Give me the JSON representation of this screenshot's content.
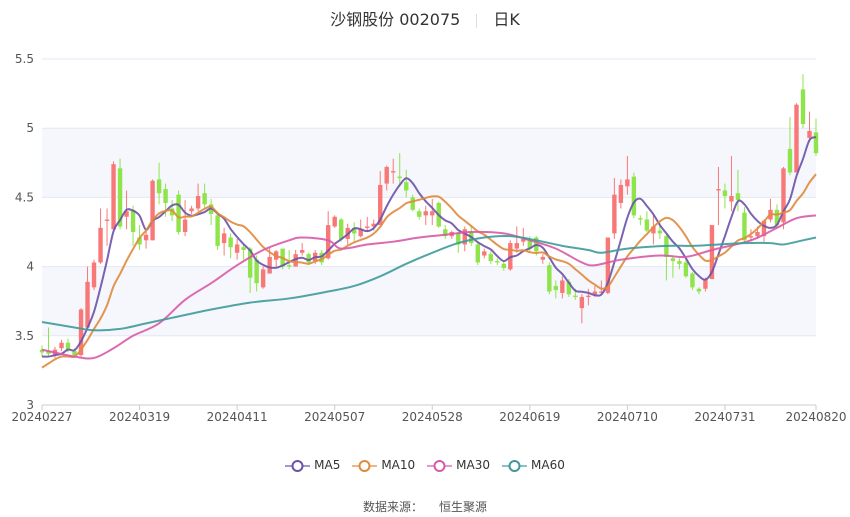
{
  "title": {
    "name": "沙钢股份 002075",
    "period": "日K"
  },
  "source": {
    "label": "数据来源：",
    "value": "恒生聚源"
  },
  "colors": {
    "up": "#f87878",
    "down": "#8ee44a",
    "MA5": "#6b52a8",
    "MA10": "#e08a3c",
    "MA30": "#d85aa6",
    "MA60": "#3e9a9a",
    "grid": "#e3e7f0",
    "band": "#f5f7fc"
  },
  "chart_data": {
    "type": "candlestick",
    "title": "沙钢股份 002075",
    "ylim": [
      3,
      5.5
    ],
    "yticks": [
      "3",
      "3.5",
      "4",
      "4.5",
      "5",
      "5.5"
    ],
    "xticks": [
      "20240227",
      "20240319",
      "20240411",
      "20240507",
      "20240528",
      "20240619",
      "20240710",
      "20240731",
      "20240820"
    ],
    "grid": true,
    "legend_placement": "bottom",
    "ohlc_format": "open, close, low, high",
    "dates": [
      "20240227",
      "20240228",
      "20240229",
      "20240301",
      "20240304",
      "20240305",
      "20240306",
      "20240307",
      "20240308",
      "20240311",
      "20240312",
      "20240313",
      "20240314",
      "20240315",
      "20240318",
      "20240319",
      "20240320",
      "20240321",
      "20240322",
      "20240325",
      "20240326",
      "20240327",
      "20240328",
      "20240329",
      "20240401",
      "20240402",
      "20240403",
      "20240408",
      "20240409",
      "20240410",
      "20240411",
      "20240412",
      "20240415",
      "20240416",
      "20240417",
      "20240418",
      "20240419",
      "20240422",
      "20240423",
      "20240424",
      "20240425",
      "20240426",
      "20240429",
      "20240430",
      "20240506",
      "20240507",
      "20240508",
      "20240509",
      "20240510",
      "20240513",
      "20240514",
      "20240515",
      "20240516",
      "20240517",
      "20240520",
      "20240521",
      "20240522",
      "20240523",
      "20240524",
      "20240527",
      "20240528",
      "20240529",
      "20240530",
      "20240531",
      "20240603",
      "20240604",
      "20240605",
      "20240606",
      "20240607",
      "20240611",
      "20240612",
      "20240613",
      "20240614",
      "20240617",
      "20240618",
      "20240619",
      "20240620",
      "20240621",
      "20240624",
      "20240625",
      "20240626",
      "20240627",
      "20240628",
      "20240701",
      "20240702",
      "20240703",
      "20240704",
      "20240705",
      "20240708",
      "20240709",
      "20240710",
      "20240711",
      "20240712",
      "20240715",
      "20240716",
      "20240717",
      "20240718",
      "20240719",
      "20240722",
      "20240723",
      "20240724",
      "20240725",
      "20240726",
      "20240729",
      "20240730",
      "20240731",
      "20240801",
      "20240802",
      "20240805",
      "20240806",
      "20240807",
      "20240808",
      "20240809",
      "20240812",
      "20240813",
      "20240814",
      "20240815",
      "20240816",
      "20240819",
      "20240820"
    ],
    "ohlc": [
      [
        3.4,
        3.38,
        3.35,
        3.43
      ],
      [
        3.39,
        3.37,
        3.35,
        3.56
      ],
      [
        3.36,
        3.4,
        3.34,
        3.42
      ],
      [
        3.41,
        3.45,
        3.39,
        3.47
      ],
      [
        3.45,
        3.4,
        3.38,
        3.48
      ],
      [
        3.39,
        3.36,
        3.34,
        3.41
      ],
      [
        3.36,
        3.69,
        3.35,
        3.7
      ],
      [
        3.56,
        3.89,
        3.56,
        4.0
      ],
      [
        3.85,
        4.03,
        3.83,
        4.05
      ],
      [
        4.03,
        4.28,
        4.02,
        4.42
      ],
      [
        4.33,
        4.34,
        4.15,
        4.42
      ],
      [
        4.27,
        4.74,
        4.27,
        4.76
      ],
      [
        4.71,
        4.29,
        4.27,
        4.78
      ],
      [
        4.36,
        4.4,
        4.27,
        4.55
      ],
      [
        4.41,
        4.25,
        4.15,
        4.44
      ],
      [
        4.21,
        4.16,
        4.12,
        4.3
      ],
      [
        4.19,
        4.23,
        4.13,
        4.26
      ],
      [
        4.19,
        4.62,
        4.19,
        4.63
      ],
      [
        4.63,
        4.53,
        4.45,
        4.75
      ],
      [
        4.56,
        4.46,
        4.36,
        4.6
      ],
      [
        4.42,
        4.37,
        4.33,
        4.48
      ],
      [
        4.52,
        4.25,
        4.23,
        4.55
      ],
      [
        4.25,
        4.34,
        4.22,
        4.48
      ],
      [
        4.4,
        4.42,
        4.38,
        4.44
      ],
      [
        4.42,
        4.51,
        4.4,
        4.6
      ],
      [
        4.53,
        4.45,
        4.42,
        4.6
      ],
      [
        4.45,
        4.38,
        4.3,
        4.49
      ],
      [
        4.37,
        4.15,
        4.12,
        4.4
      ],
      [
        4.17,
        4.24,
        4.08,
        4.28
      ],
      [
        4.21,
        4.14,
        4.06,
        4.24
      ],
      [
        4.1,
        4.16,
        4.05,
        4.2
      ],
      [
        4.14,
        4.12,
        4.05,
        4.16
      ],
      [
        4.13,
        3.92,
        3.81,
        4.14
      ],
      [
        4.05,
        3.88,
        3.82,
        4.08
      ],
      [
        3.85,
        3.98,
        3.84,
        4.0
      ],
      [
        3.95,
        4.07,
        3.95,
        4.14
      ],
      [
        4.05,
        4.11,
        4.0,
        4.12
      ],
      [
        4.13,
        4.0,
        3.98,
        4.13
      ],
      [
        4.01,
        4.0,
        3.98,
        4.12
      ],
      [
        4.0,
        4.09,
        4.0,
        4.12
      ],
      [
        4.1,
        4.12,
        4.08,
        4.17
      ],
      [
        4.09,
        4.03,
        4.01,
        4.1
      ],
      [
        4.04,
        4.1,
        4.02,
        4.12
      ],
      [
        4.1,
        4.03,
        4.01,
        4.12
      ],
      [
        4.06,
        4.3,
        4.05,
        4.4
      ],
      [
        4.29,
        4.36,
        4.28,
        4.37
      ],
      [
        4.34,
        4.2,
        4.18,
        4.35
      ],
      [
        4.2,
        4.28,
        4.16,
        4.31
      ],
      [
        4.28,
        4.24,
        4.18,
        4.32
      ],
      [
        4.22,
        4.27,
        4.21,
        4.34
      ],
      [
        4.28,
        4.29,
        4.25,
        4.36
      ],
      [
        4.29,
        4.31,
        4.26,
        4.34
      ],
      [
        4.3,
        4.59,
        4.3,
        4.69
      ],
      [
        4.6,
        4.72,
        4.55,
        4.73
      ],
      [
        4.68,
        4.69,
        4.6,
        4.78
      ],
      [
        4.65,
        4.64,
        4.58,
        4.82
      ],
      [
        4.61,
        4.55,
        4.5,
        4.7
      ],
      [
        4.5,
        4.41,
        4.4,
        4.52
      ],
      [
        4.4,
        4.36,
        4.34,
        4.42
      ],
      [
        4.37,
        4.4,
        4.3,
        4.44
      ],
      [
        4.37,
        4.4,
        4.3,
        4.49
      ],
      [
        4.46,
        4.29,
        4.28,
        4.47
      ],
      [
        4.27,
        4.22,
        4.2,
        4.3
      ],
      [
        4.22,
        4.25,
        4.2,
        4.26
      ],
      [
        4.24,
        4.16,
        4.1,
        4.25
      ],
      [
        4.16,
        4.27,
        4.11,
        4.29
      ],
      [
        4.25,
        4.17,
        4.15,
        4.3
      ],
      [
        4.16,
        4.03,
        4.01,
        4.17
      ],
      [
        4.08,
        4.11,
        4.06,
        4.13
      ],
      [
        4.09,
        4.04,
        4.02,
        4.11
      ],
      [
        4.04,
        4.03,
        4.01,
        4.06
      ],
      [
        4.02,
        3.99,
        3.97,
        4.04
      ],
      [
        3.98,
        4.17,
        3.97,
        4.19
      ],
      [
        4.13,
        4.17,
        4.1,
        4.29
      ],
      [
        4.18,
        4.2,
        4.15,
        4.28
      ],
      [
        4.19,
        4.13,
        4.1,
        4.22
      ],
      [
        4.21,
        4.11,
        4.08,
        4.22
      ],
      [
        4.05,
        4.07,
        4.02,
        4.09
      ],
      [
        4.01,
        3.82,
        3.8,
        4.03
      ],
      [
        3.86,
        3.83,
        3.77,
        3.9
      ],
      [
        3.81,
        3.9,
        3.77,
        3.93
      ],
      [
        3.89,
        3.8,
        3.78,
        3.91
      ],
      [
        3.79,
        3.78,
        3.76,
        3.84
      ],
      [
        3.7,
        3.78,
        3.59,
        3.8
      ],
      [
        3.78,
        3.79,
        3.72,
        3.84
      ],
      [
        3.8,
        3.82,
        3.78,
        3.86
      ],
      [
        3.81,
        3.82,
        3.8,
        3.9
      ],
      [
        3.81,
        4.21,
        3.8,
        4.21
      ],
      [
        4.24,
        4.52,
        4.2,
        4.64
      ],
      [
        4.46,
        4.59,
        4.42,
        4.63
      ],
      [
        4.58,
        4.63,
        4.52,
        4.8
      ],
      [
        4.65,
        4.37,
        4.35,
        4.68
      ],
      [
        4.35,
        4.34,
        4.3,
        4.37
      ],
      [
        4.34,
        4.26,
        4.25,
        4.4
      ],
      [
        4.24,
        4.29,
        4.16,
        4.38
      ],
      [
        4.26,
        4.24,
        4.2,
        4.32
      ],
      [
        4.22,
        4.07,
        3.9,
        4.24
      ],
      [
        4.06,
        4.04,
        3.92,
        4.08
      ],
      [
        4.04,
        4.02,
        3.98,
        4.06
      ],
      [
        4.03,
        3.93,
        3.92,
        4.05
      ],
      [
        3.95,
        3.85,
        3.83,
        3.96
      ],
      [
        3.84,
        3.82,
        3.8,
        3.85
      ],
      [
        3.84,
        3.91,
        3.82,
        3.92
      ],
      [
        3.91,
        4.3,
        3.91,
        4.3
      ],
      [
        4.55,
        4.56,
        4.3,
        4.72
      ],
      [
        4.55,
        4.51,
        4.42,
        4.6
      ],
      [
        4.47,
        4.51,
        4.4,
        4.8
      ],
      [
        4.53,
        4.48,
        4.4,
        4.7
      ],
      [
        4.39,
        4.19,
        4.17,
        4.43
      ],
      [
        4.21,
        4.22,
        4.18,
        4.27
      ],
      [
        4.22,
        4.25,
        4.2,
        4.29
      ],
      [
        4.22,
        4.33,
        4.18,
        4.34
      ],
      [
        4.34,
        4.41,
        4.32,
        4.49
      ],
      [
        4.41,
        4.3,
        4.28,
        4.45
      ],
      [
        4.32,
        4.71,
        4.27,
        4.72
      ],
      [
        4.85,
        4.68,
        4.66,
        5.08
      ],
      [
        4.68,
        5.17,
        4.68,
        5.18
      ],
      [
        5.28,
        5.03,
        5.0,
        5.39
      ],
      [
        4.93,
        4.98,
        4.9,
        5.12
      ],
      [
        4.97,
        4.82,
        4.8,
        5.07
      ]
    ],
    "series": [
      {
        "name": "MA5",
        "period": 5,
        "leading_values": [
          3.35,
          3.35,
          3.36,
          3.37
        ]
      },
      {
        "name": "MA10",
        "period": 10,
        "leading_values": [
          3.27,
          3.3,
          3.33,
          3.35,
          3.35,
          3.35,
          3.4,
          3.47,
          3.55
        ]
      },
      {
        "name": "MA30",
        "points": [
          [
            "20240227",
            3.4
          ],
          [
            "20240305",
            3.35
          ],
          [
            "20240308",
            3.34
          ],
          [
            "20240313",
            3.41
          ],
          [
            "20240318",
            3.5
          ],
          [
            "20240322",
            3.59
          ],
          [
            "20240328",
            3.76
          ],
          [
            "20240403",
            3.88
          ],
          [
            "20240411",
            4.01
          ],
          [
            "20240417",
            4.12
          ],
          [
            "20240423",
            4.19
          ],
          [
            "20240425",
            4.21
          ],
          [
            "20240506",
            4.19
          ],
          [
            "20240508",
            4.13
          ],
          [
            "20240514",
            4.16
          ],
          [
            "20240520",
            4.18
          ],
          [
            "20240524",
            4.21
          ],
          [
            "20240530",
            4.23
          ],
          [
            "20240605",
            4.25
          ],
          [
            "20240613",
            4.24
          ],
          [
            "20240619",
            4.19
          ],
          [
            "20240625",
            4.13
          ],
          [
            "20240701",
            4.03
          ],
          [
            "20240703",
            4.01
          ],
          [
            "20240709",
            4.05
          ],
          [
            "20240717",
            4.08
          ],
          [
            "20240723",
            4.07
          ],
          [
            "20240729",
            4.12
          ],
          [
            "20240806",
            4.19
          ],
          [
            "20240812",
            4.28
          ],
          [
            "20240815",
            4.35
          ],
          [
            "20240820",
            4.37
          ]
        ]
      },
      {
        "name": "MA60",
        "points": [
          [
            "20240227",
            3.6
          ],
          [
            "20240305",
            3.56
          ],
          [
            "20240308",
            3.54
          ],
          [
            "20240314",
            3.55
          ],
          [
            "20240320",
            3.59
          ],
          [
            "20240326",
            3.63
          ],
          [
            "20240403",
            3.69
          ],
          [
            "20240415",
            3.74
          ],
          [
            "20240423",
            3.77
          ],
          [
            "20240506",
            3.82
          ],
          [
            "20240510",
            3.86
          ],
          [
            "20240516",
            3.93
          ],
          [
            "20240522",
            4.02
          ],
          [
            "20240528",
            4.1
          ],
          [
            "20240603",
            4.17
          ],
          [
            "20240607",
            4.21
          ],
          [
            "20240614",
            4.22
          ],
          [
            "20240620",
            4.19
          ],
          [
            "20240626",
            4.15
          ],
          [
            "20240702",
            4.12
          ],
          [
            "20240704",
            4.1
          ],
          [
            "20240710",
            4.13
          ],
          [
            "20240718",
            4.15
          ],
          [
            "20240724",
            4.15
          ],
          [
            "20240730",
            4.16
          ],
          [
            "20240805",
            4.17
          ],
          [
            "20240809",
            4.17
          ],
          [
            "20240813",
            4.16
          ],
          [
            "20240816",
            4.19
          ],
          [
            "20240820",
            4.21
          ]
        ]
      }
    ]
  }
}
